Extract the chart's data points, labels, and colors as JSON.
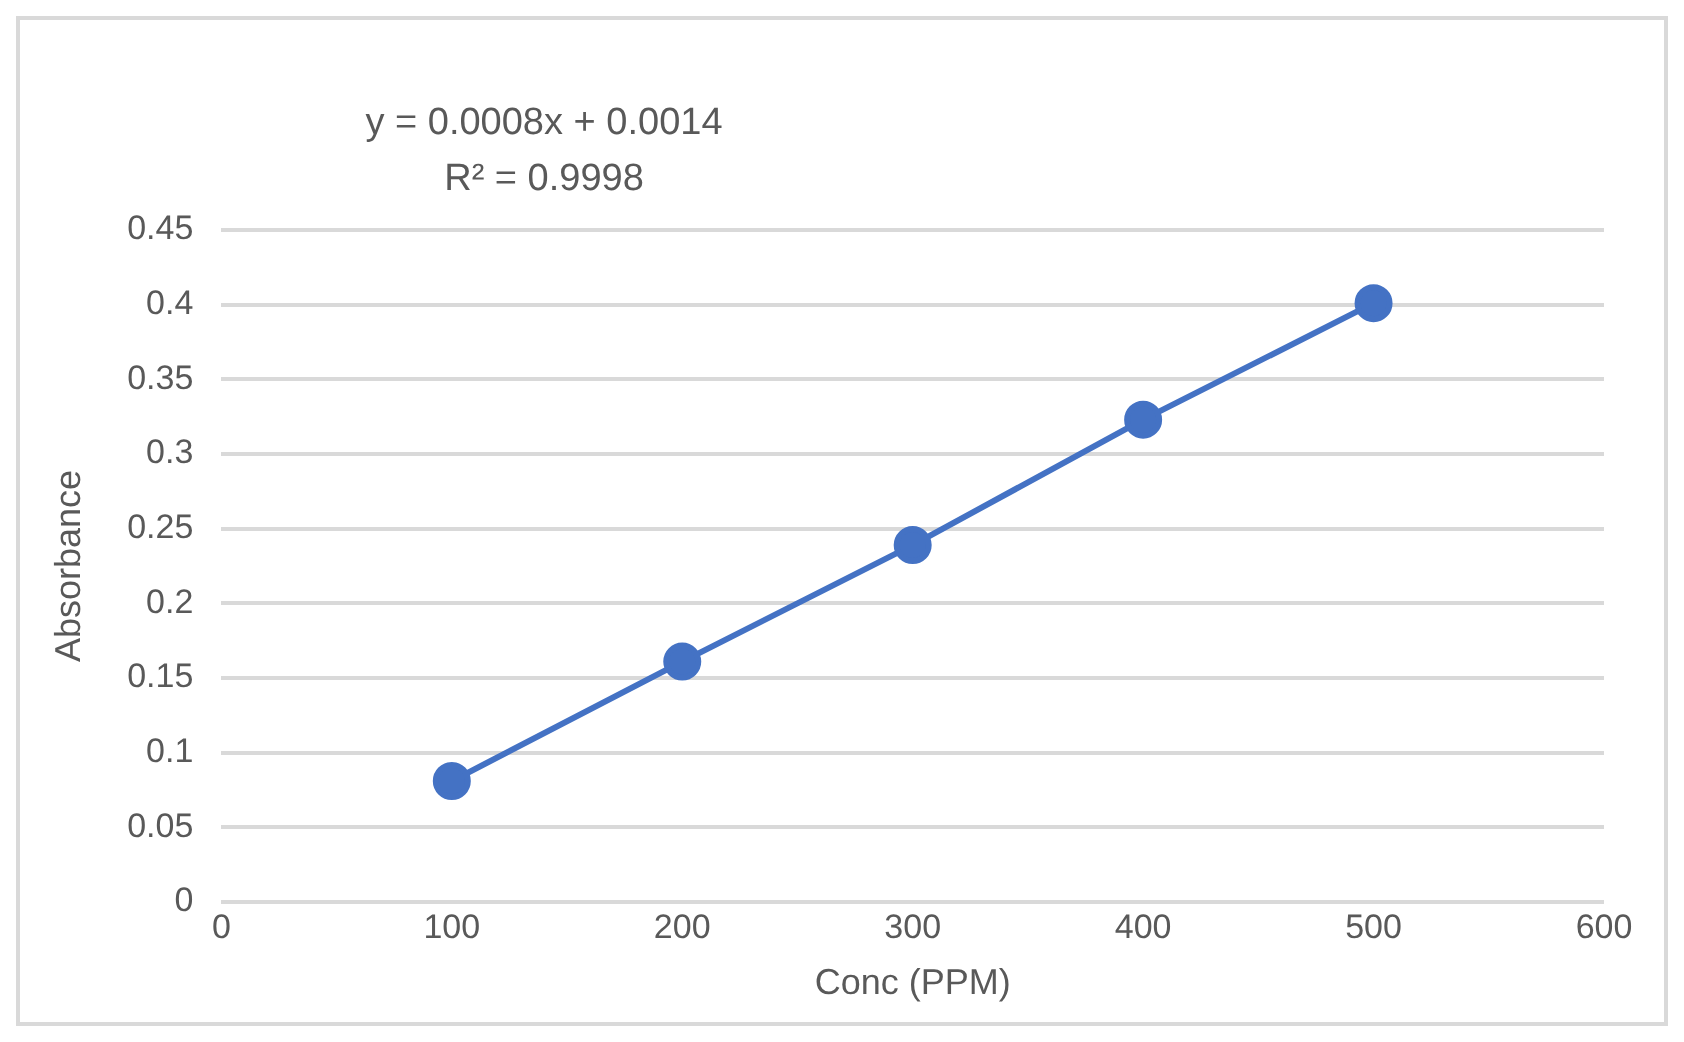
{
  "chart_data": {
    "type": "line",
    "xlabel": "Conc (PPM)",
    "ylabel": "Absorbance",
    "x": [
      100,
      200,
      300,
      400,
      500
    ],
    "series": [
      {
        "color": "#4472c4",
        "values": [
          0.081,
          0.161,
          0.239,
          0.323,
          0.401
        ]
      }
    ],
    "xlim": [
      0,
      600
    ],
    "xticks": [
      0,
      100,
      200,
      300,
      400,
      500,
      600
    ],
    "ylim": [
      0,
      0.45
    ],
    "yticks": [
      0,
      0.05,
      0.1,
      0.15,
      0.2,
      0.25,
      0.3,
      0.35,
      0.4,
      0.45
    ],
    "annotations": [
      "y = 0.0008x + 0.0014",
      "R² = 0.9998"
    ],
    "grid": "y",
    "legend": false,
    "marker": "circle",
    "line_style": "solid"
  }
}
